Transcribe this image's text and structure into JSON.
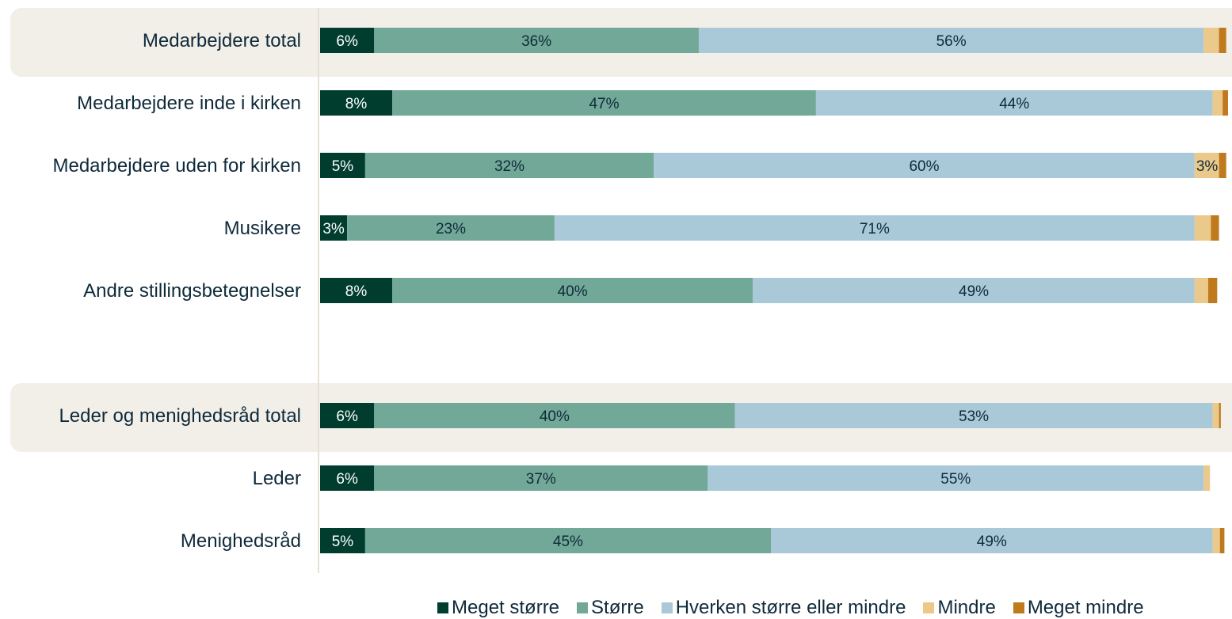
{
  "chart_data": {
    "type": "bar",
    "orientation": "horizontal",
    "stacked": true,
    "title": "",
    "xlabel": "",
    "ylabel": "",
    "xlim": [
      0,
      100
    ],
    "grid": false,
    "legend_position": "bottom-right",
    "categories": [
      "Medarbejdere total",
      "Medarbejdere inde i kirken",
      "Medarbejdere uden for kirken",
      "Musikere",
      "Andre stillingsbetegnelser",
      "",
      "Leder og menighedsråd total",
      "Leder",
      "Menighedsråd"
    ],
    "highlighted_categories": [
      "Medarbejdere total",
      "Leder og menighedsråd total"
    ],
    "series": [
      {
        "name": "Meget større",
        "color": "#003d2e",
        "label_color": "#ffffff",
        "values": [
          6,
          8,
          5,
          3,
          8,
          null,
          6,
          6,
          5
        ]
      },
      {
        "name": "Større",
        "color": "#72a898",
        "label_color": "#0f2a3a",
        "values": [
          36,
          47,
          32,
          23,
          40,
          null,
          40,
          37,
          45
        ]
      },
      {
        "name": "Hverken større eller mindre",
        "color": "#a9c8d8",
        "label_color": "#0f2a3a",
        "values": [
          56,
          44,
          60,
          71,
          49,
          null,
          53,
          55,
          49
        ]
      },
      {
        "name": "Mindre",
        "color": "#ebc98a",
        "label_color": "#0f2a3a",
        "values": [
          1.7,
          1.1,
          2.7,
          1.8,
          1.5,
          null,
          0.7,
          0.7,
          0.8
        ]
      },
      {
        "name": "Meget mindre",
        "color": "#c07a1e",
        "label_color": "#0f2a3a",
        "values": [
          0.8,
          0.6,
          0.8,
          0.9,
          1.0,
          null,
          0.2,
          0.0,
          0.5
        ]
      }
    ],
    "data_labels": [
      [
        "6%",
        "36%",
        "56%",
        "",
        ""
      ],
      [
        "8%",
        "47%",
        "44%",
        "",
        ""
      ],
      [
        "5%",
        "32%",
        "60%",
        "3%",
        ""
      ],
      [
        "3%",
        "23%",
        "71%",
        "",
        ""
      ],
      [
        "8%",
        "40%",
        "49%",
        "",
        ""
      ],
      [
        "",
        "",
        "",
        "",
        ""
      ],
      [
        "6%",
        "40%",
        "53%",
        "",
        ""
      ],
      [
        "6%",
        "37%",
        "55%",
        "",
        ""
      ],
      [
        "5%",
        "45%",
        "49%",
        "",
        ""
      ]
    ],
    "highlight_color": "#f2efe9",
    "axis_line_color": "#e8e0d4"
  }
}
